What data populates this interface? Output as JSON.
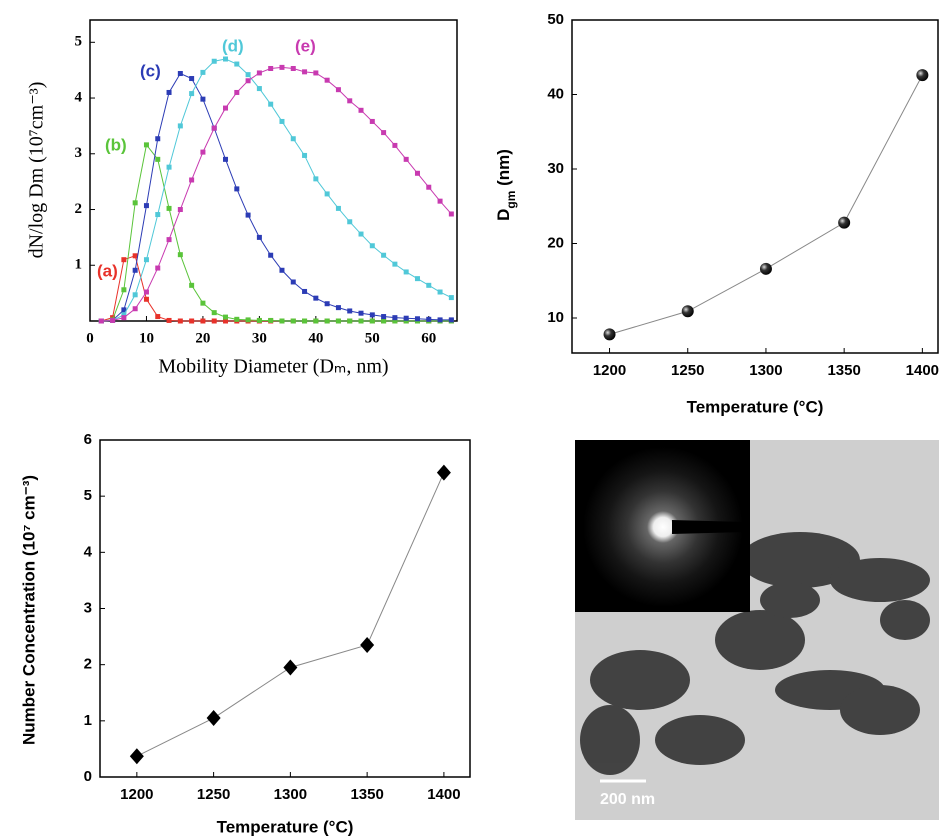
{
  "chart_data": [
    {
      "type": "line",
      "x_label": "Mobility Diameter (Dₘ, nm)",
      "y_label": "dN/log Dm (10⁷cm⁻³)",
      "x": [
        2,
        4,
        6,
        8,
        10,
        12,
        14,
        16,
        18,
        20,
        22,
        24,
        26,
        28,
        30,
        32,
        34,
        36,
        38,
        40,
        42,
        44,
        46,
        48,
        50,
        52,
        54,
        56,
        58,
        60,
        62,
        64
      ],
      "series": [
        {
          "name": "(a)",
          "color": "#e8322a",
          "values": [
            0,
            0.06,
            1.1,
            1.17,
            0.39,
            0.08,
            0.01,
            0,
            0,
            0,
            0,
            0,
            0,
            0,
            0,
            0,
            0,
            0,
            0,
            0,
            0,
            0,
            0,
            0,
            0,
            0,
            0,
            0,
            0,
            0,
            0,
            0
          ]
        },
        {
          "name": "(b)",
          "color": "#5ac43a",
          "values": [
            0,
            0.02,
            0.56,
            2.12,
            3.16,
            2.9,
            2.02,
            1.19,
            0.64,
            0.32,
            0.15,
            0.07,
            0.03,
            0.02,
            0.01,
            0.01,
            0,
            0,
            0,
            0,
            0,
            0,
            0,
            0,
            0,
            0,
            0,
            0,
            0,
            0,
            0,
            0
          ]
        },
        {
          "name": "(c)",
          "color": "#2c3cb5",
          "values": [
            0,
            0.01,
            0.2,
            0.91,
            2.07,
            3.27,
            4.1,
            4.44,
            4.35,
            3.98,
            3.46,
            2.9,
            2.37,
            1.9,
            1.5,
            1.18,
            0.91,
            0.7,
            0.53,
            0.41,
            0.31,
            0.24,
            0.18,
            0.14,
            0.11,
            0.08,
            0.06,
            0.05,
            0.04,
            0.03,
            0.02,
            0.02
          ]
        },
        {
          "name": "(d)",
          "color": "#50c8d8",
          "values": [
            0,
            0.01,
            0.11,
            0.47,
            1.1,
            1.91,
            2.76,
            3.5,
            4.08,
            4.46,
            4.66,
            4.7,
            4.61,
            4.42,
            4.17,
            3.89,
            3.58,
            3.27,
            2.97,
            2.55,
            2.28,
            2.02,
            1.78,
            1.56,
            1.35,
            1.18,
            1.02,
            0.88,
            0.76,
            0.64,
            0.52,
            0.42
          ]
        },
        {
          "name": "(e)",
          "color": "#c83ab0",
          "values": [
            0,
            0.01,
            0.06,
            0.22,
            0.52,
            0.95,
            1.46,
            2.0,
            2.53,
            3.03,
            3.46,
            3.82,
            4.1,
            4.31,
            4.45,
            4.53,
            4.55,
            4.53,
            4.47,
            4.45,
            4.32,
            4.15,
            3.95,
            3.78,
            3.58,
            3.38,
            3.15,
            2.9,
            2.65,
            2.4,
            2.15,
            1.92
          ]
        }
      ],
      "marker": "square",
      "xlim": [
        0,
        65
      ],
      "ylim": [
        0,
        5.4
      ],
      "xticks": [
        0,
        10,
        20,
        30,
        40,
        50,
        60
      ],
      "yticks": [
        1,
        2,
        3,
        4,
        5
      ]
    },
    {
      "type": "line",
      "x_label": "Temperature (°C)",
      "y_label": "D",
      "y_label_sub": "gm",
      "y_label_end": " (nm)",
      "x": [
        1200,
        1250,
        1300,
        1350,
        1400
      ],
      "values": [
        7.8,
        10.9,
        16.6,
        22.8,
        42.6
      ],
      "color": "#000000",
      "marker": "circle",
      "xlim": [
        1176,
        1410
      ],
      "ylim": [
        5.3,
        50
      ],
      "xticks": [
        1200,
        1250,
        1300,
        1350,
        1400
      ],
      "yticks": [
        10,
        20,
        30,
        40,
        50
      ]
    },
    {
      "type": "line",
      "x_label": "Temperature (°C)",
      "y_label": "Number Concentration (10⁷ cm⁻³)",
      "x": [
        1200,
        1250,
        1300,
        1350,
        1400
      ],
      "values": [
        0.37,
        1.05,
        1.95,
        2.35,
        5.42
      ],
      "color": "#000000",
      "marker": "diamond",
      "xlim": [
        1176,
        1417
      ],
      "ylim": [
        0,
        6
      ],
      "xticks": [
        1200,
        1250,
        1300,
        1350,
        1400
      ],
      "yticks": [
        0,
        1,
        2,
        3,
        4,
        5,
        6
      ]
    }
  ],
  "image_panel": {
    "scale_label": "200 nm"
  }
}
